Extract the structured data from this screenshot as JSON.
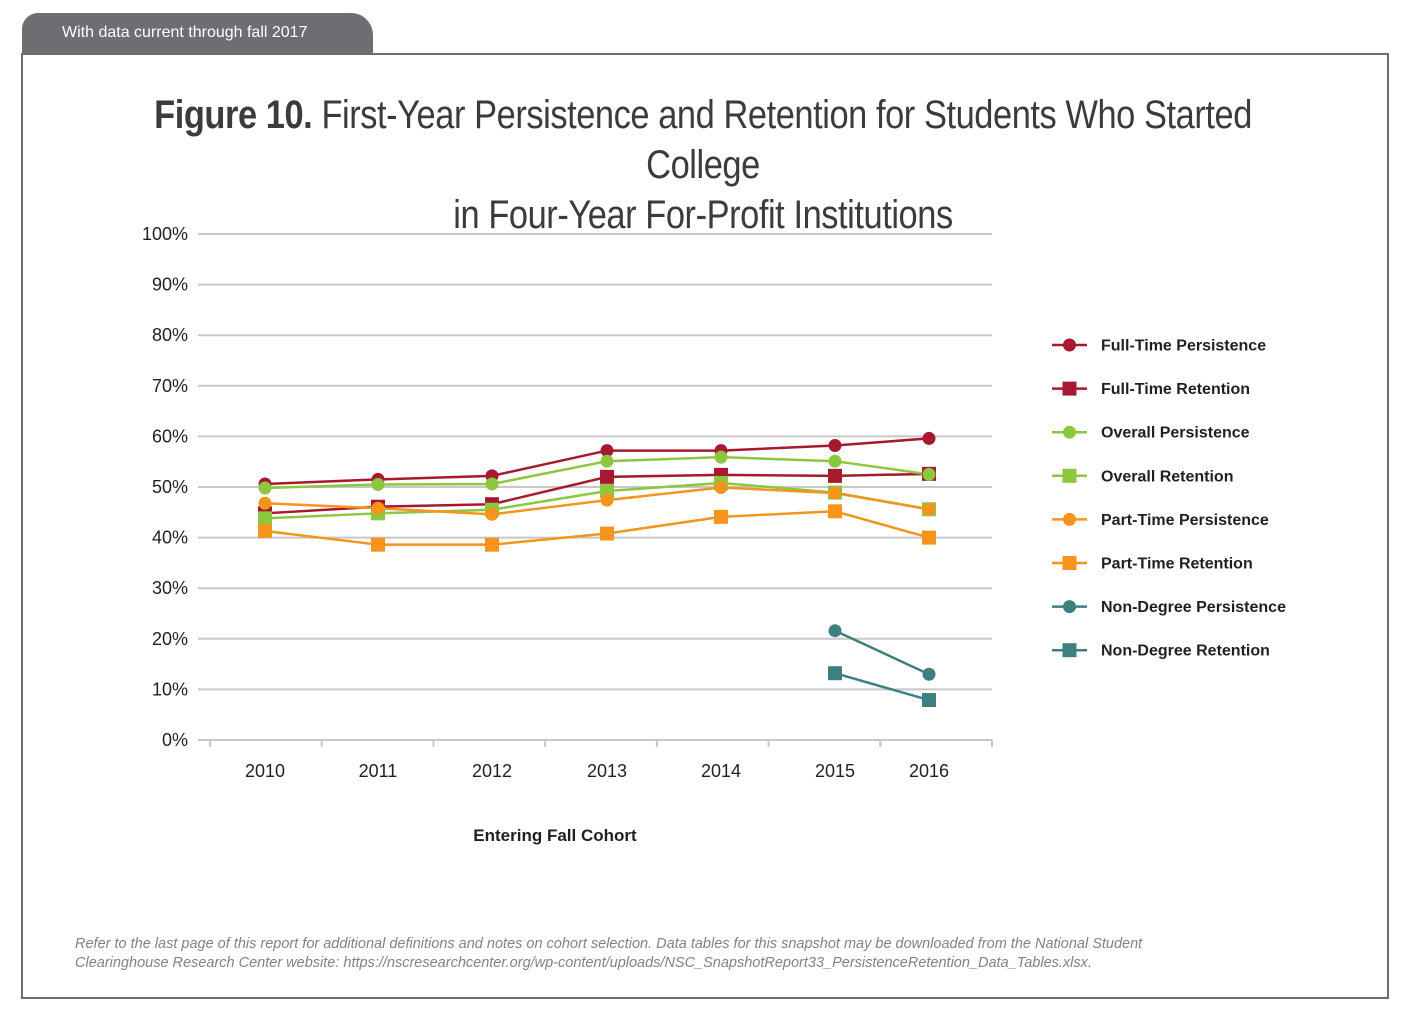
{
  "header": {
    "tab_label": "With data current through fall 2017"
  },
  "title": {
    "figure_label": "Figure 10.",
    "line1": "First-Year Persistence and Retention for Students Who Started College",
    "line2": "in Four-Year For-Profit Institutions"
  },
  "footnote": {
    "line1": "Refer to the last page of this report for additional definitions and notes on cohort selection. Data tables for this snapshot may be downloaded from the National Student",
    "line2": "Clearinghouse Research Center website: https://nscresearchcenter.org/wp-content/uploads/NSC_SnapshotReport33_PersistenceRetention_Data_Tables.xlsx."
  },
  "chart_data": {
    "type": "line",
    "title": "",
    "xlabel": "Entering Fall Cohort",
    "ylabel": "",
    "categories": [
      "2010",
      "2011",
      "2012",
      "2013",
      "2014",
      "2015",
      "2016"
    ],
    "ylim": [
      0,
      100
    ],
    "yticks": [
      "0%",
      "10%",
      "20%",
      "30%",
      "40%",
      "50%",
      "60%",
      "70%",
      "80%",
      "90%",
      "100%"
    ],
    "grid": true,
    "legend_position": "right",
    "series": [
      {
        "name": "Full-Time Persistence",
        "color": "#a6192e",
        "marker": "circle",
        "values": [
          50.6,
          51.5,
          52.2,
          57.2,
          57.2,
          58.2,
          59.6
        ]
      },
      {
        "name": "Full-Time Retention",
        "color": "#a6192e",
        "marker": "square",
        "values": [
          44.8,
          46.1,
          46.6,
          52.0,
          52.4,
          52.2,
          52.6
        ]
      },
      {
        "name": "Overall Persistence",
        "color": "#8dc63f",
        "marker": "circle",
        "values": [
          49.8,
          50.5,
          50.6,
          55.1,
          55.9,
          55.1,
          52.5
        ]
      },
      {
        "name": "Overall Retention",
        "color": "#8dc63f",
        "marker": "square",
        "values": [
          43.8,
          44.8,
          45.5,
          49.2,
          50.8,
          48.9,
          45.6
        ]
      },
      {
        "name": "Part-Time Persistence",
        "color": "#f7941d",
        "marker": "circle",
        "values": [
          46.8,
          45.8,
          44.6,
          47.4,
          49.9,
          48.8,
          45.6
        ]
      },
      {
        "name": "Part-Time Retention",
        "color": "#f7941d",
        "marker": "square",
        "values": [
          41.3,
          38.6,
          38.6,
          40.8,
          44.1,
          45.2,
          40.0
        ]
      },
      {
        "name": "Non-Degree Persistence",
        "color": "#3e8080",
        "marker": "circle",
        "values": [
          null,
          null,
          null,
          null,
          null,
          21.6,
          13.0
        ]
      },
      {
        "name": "Non-Degree Retention",
        "color": "#3e8080",
        "marker": "square",
        "values": [
          null,
          null,
          null,
          null,
          null,
          13.2,
          7.9
        ]
      }
    ]
  }
}
